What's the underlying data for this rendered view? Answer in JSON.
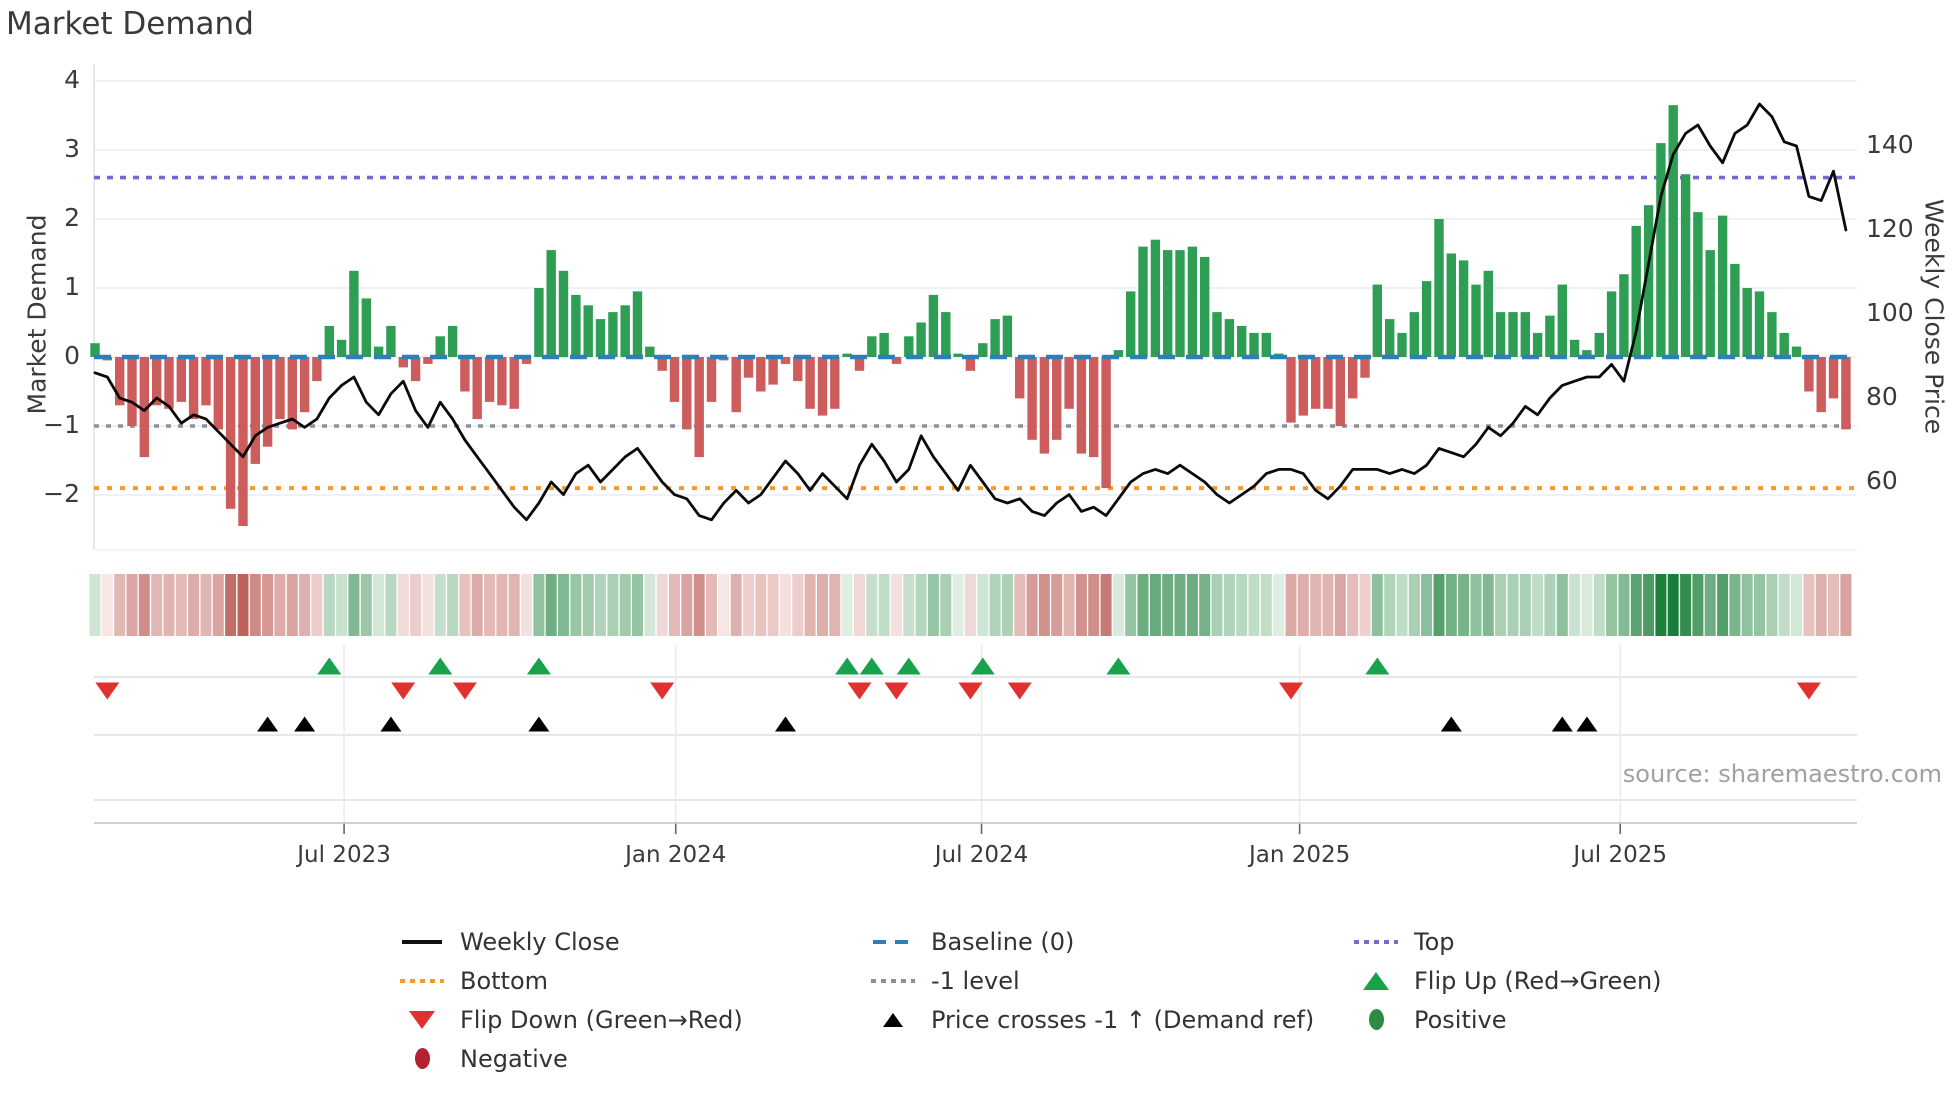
{
  "title": "Market Demand",
  "source": "source: sharemaestro.com",
  "axes": {
    "left_label": "Market Demand",
    "right_label": "Weekly Close Price",
    "left_ticks": [
      4,
      3,
      2,
      1,
      0,
      -1,
      -2
    ],
    "right_ticks": [
      140,
      120,
      100,
      80,
      60
    ],
    "x_ticks": [
      {
        "label": "Jul 2023",
        "week": 20.2
      },
      {
        "label": "Jan 2024",
        "week": 47.1
      },
      {
        "label": "Jul 2024",
        "week": 71.9
      },
      {
        "label": "Jan 2025",
        "week": 97.7
      },
      {
        "label": "Jul 2025",
        "week": 123.7
      }
    ]
  },
  "colors": {
    "bar_positive": "#2f9e55",
    "bar_negative": "#cd5c5c",
    "price_line": "#0a0a0a",
    "baseline": "#2e7eb8",
    "top_line": "#7668cf",
    "bottom_line": "#f59b2d",
    "minus1_line": "#8a8f98",
    "flip_up": "#18a24b",
    "flip_down": "#e03131",
    "price_cross": "#000000",
    "positive_dot": "#2e8b44",
    "negative_dot": "#b22230",
    "gridline": "#e9edf4"
  },
  "legend": {
    "col1": [
      {
        "label": "Weekly Close",
        "marker": "black-line"
      },
      {
        "label": "Bottom",
        "marker": "orange-dotted"
      },
      {
        "label": "Flip Down (Green→Red)",
        "marker": "red-triangle-down"
      },
      {
        "label": "Negative",
        "marker": "darkred-circle"
      }
    ],
    "col2": [
      {
        "label": "Baseline (0)",
        "marker": "blue-dashed"
      },
      {
        "label": "-1 level",
        "marker": "gray-dotted"
      },
      {
        "label": "Price crosses -1 ↑ (Demand ref)",
        "marker": "black-triangle-up"
      }
    ],
    "col3": [
      {
        "label": "Top",
        "marker": "purple-dotted"
      },
      {
        "label": "Flip Up (Red→Green)",
        "marker": "green-triangle-up"
      },
      {
        "label": "Positive",
        "marker": "green-circle"
      }
    ]
  },
  "chart_data": {
    "type": "bar",
    "subtype": "weekly bar + line combo with signal heatmap and event markers",
    "title": "Market Demand",
    "xlabel": "",
    "ylabel": "Market Demand",
    "y2label": "Weekly Close Price",
    "x_start_date": "2023-02 (weekly)",
    "x_end_date": "2025-11",
    "n_weeks": 143,
    "ylim_demand": [
      -2.6,
      4
    ],
    "ylim_price_ticks": [
      60,
      140
    ],
    "grid": "horizontal only",
    "legend_position": "bottom",
    "reference_lines": {
      "baseline": 0,
      "top": 2.6,
      "bottom": -1.9,
      "minus1": -1
    },
    "series": [
      {
        "name": "Market Demand",
        "type": "bar",
        "values": [
          0.2,
          -0.05,
          -0.7,
          -1.0,
          -1.45,
          -0.7,
          -0.75,
          -0.65,
          -0.9,
          -0.7,
          -1.05,
          -2.2,
          -2.45,
          -1.55,
          -1.3,
          -0.9,
          -1.05,
          -0.8,
          -0.35,
          0.45,
          0.25,
          1.25,
          0.85,
          0.15,
          0.45,
          -0.15,
          -0.35,
          -0.1,
          0.3,
          0.45,
          -0.5,
          -0.9,
          -0.65,
          -0.7,
          -0.75,
          -0.1,
          1.0,
          1.55,
          1.25,
          0.9,
          0.75,
          0.55,
          0.65,
          0.75,
          0.95,
          0.15,
          -0.2,
          -0.65,
          -1.05,
          -1.45,
          -0.65,
          -0.05,
          -0.8,
          -0.3,
          -0.5,
          -0.4,
          -0.1,
          -0.35,
          -0.75,
          -0.85,
          -0.75,
          0.05,
          -0.2,
          0.3,
          0.35,
          -0.1,
          0.3,
          0.5,
          0.9,
          0.65,
          0.05,
          -0.2,
          0.2,
          0.55,
          0.6,
          -0.6,
          -1.2,
          -1.4,
          -1.2,
          -0.75,
          -1.4,
          -1.45,
          -1.9,
          0.1,
          0.95,
          1.6,
          1.7,
          1.55,
          1.55,
          1.6,
          1.45,
          0.65,
          0.55,
          0.45,
          0.35,
          0.35,
          0.05,
          -0.95,
          -0.85,
          -0.75,
          -0.75,
          -1.0,
          -0.6,
          -0.3,
          1.05,
          0.55,
          0.35,
          0.65,
          1.1,
          2.0,
          1.5,
          1.4,
          1.05,
          1.25,
          0.65,
          0.65,
          0.65,
          0.35,
          0.6,
          1.05,
          0.25,
          0.1,
          0.35,
          0.95,
          1.2,
          1.9,
          2.2,
          3.1,
          3.65,
          2.65,
          2.1,
          1.55,
          2.05,
          1.35,
          1.0,
          0.95,
          0.65,
          0.35,
          0.15,
          -0.5,
          -0.8,
          -0.6,
          -1.05
        ]
      },
      {
        "name": "Weekly Close",
        "type": "line",
        "values": [
          86,
          85,
          80,
          79,
          77,
          80,
          78,
          74,
          76,
          75,
          72,
          69,
          66,
          71,
          73,
          74,
          75,
          73,
          75,
          80,
          83,
          85,
          79,
          76,
          81,
          84,
          77,
          73,
          79,
          75,
          70,
          66,
          62,
          58,
          54,
          51,
          55,
          60,
          57,
          62,
          64,
          60,
          63,
          66,
          68,
          64,
          60,
          57,
          56,
          52,
          51,
          55,
          58,
          55,
          57,
          61,
          65,
          62,
          58,
          62,
          59,
          56,
          64,
          69,
          65,
          60,
          63,
          71,
          66,
          62,
          58,
          64,
          60,
          56,
          55,
          56,
          53,
          52,
          55,
          57,
          53,
          54,
          52,
          56,
          60,
          62,
          63,
          62,
          64,
          62,
          60,
          57,
          55,
          57,
          59,
          62,
          63,
          63,
          62,
          58,
          56,
          59,
          63,
          63,
          63,
          62,
          63,
          62,
          64,
          68,
          67,
          66,
          69,
          73,
          71,
          74,
          78,
          76,
          80,
          83,
          84,
          85,
          85,
          88,
          84,
          96,
          112,
          128,
          138,
          143,
          145,
          140,
          136,
          143,
          145,
          150,
          147,
          141,
          140,
          128,
          127,
          134,
          120
        ]
      }
    ],
    "markers": {
      "flip_up_weeks": [
        19,
        28,
        36,
        61,
        63,
        66,
        72,
        83,
        104
      ],
      "flip_down_weeks": [
        1,
        25,
        30,
        46,
        62,
        65,
        71,
        75,
        97,
        139
      ],
      "price_cross_minus1_weeks": [
        14,
        17,
        24,
        36,
        56,
        110,
        119,
        121
      ]
    },
    "heatmap_note": "strip below chart mirrors weekly demand values: green shades for positive, red shades for negative, intensity proportional to magnitude"
  }
}
